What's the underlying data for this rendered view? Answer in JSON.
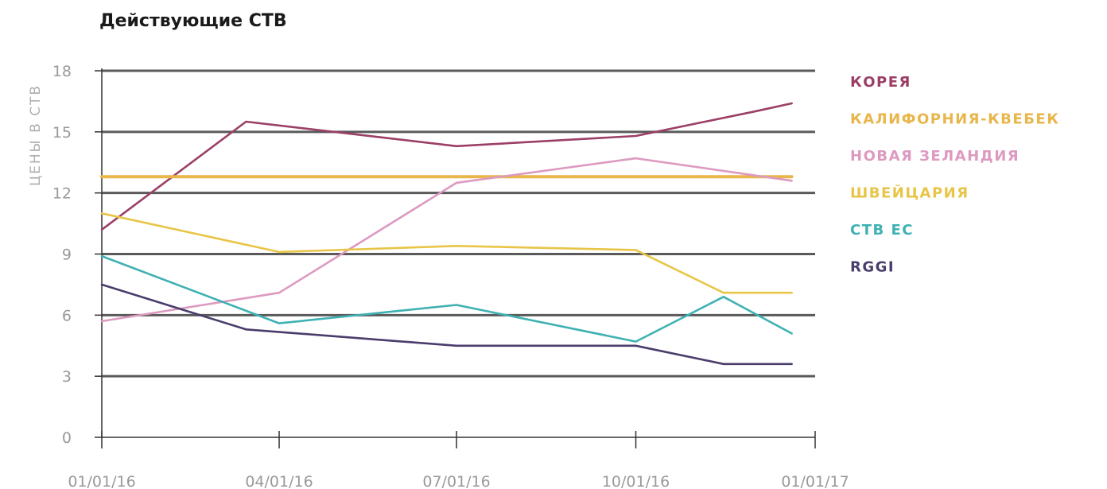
{
  "chart_data": {
    "type": "line",
    "title": "Действующие СТВ",
    "ylabel": "ЦЕНЫ В СТВ",
    "xlabel": "",
    "x_ticks": [
      "01/01/16",
      "04/01/16",
      "07/01/16",
      "10/01/16",
      "01/01/17"
    ],
    "y_ticks": [
      0,
      3,
      6,
      9,
      12,
      15,
      18
    ],
    "xlim": [
      "2016-01-01",
      "2017-01-01"
    ],
    "ylim": [
      0,
      18
    ],
    "grid": "horizontal",
    "legend_position": "right",
    "series": [
      {
        "name": "КОРЕЯ",
        "color": "#9b3f66",
        "points": [
          [
            "2016-01-01",
            10.2
          ],
          [
            "2016-03-15",
            15.5
          ],
          [
            "2016-07-01",
            14.3
          ],
          [
            "2016-10-01",
            14.8
          ],
          [
            "2016-12-01",
            16.0
          ],
          [
            "2016-12-20",
            16.4
          ]
        ]
      },
      {
        "name": "КАЛИФОРНИЯ-КВЕБЕК",
        "color": "#e8b64a",
        "points": [
          [
            "2016-01-01",
            12.8
          ],
          [
            "2016-12-20",
            12.8
          ]
        ]
      },
      {
        "name": "НОВАЯ ЗЕЛАНДИЯ",
        "color": "#dd9ac0",
        "points": [
          [
            "2016-01-01",
            5.7
          ],
          [
            "2016-04-01",
            7.1
          ],
          [
            "2016-07-01",
            12.5
          ],
          [
            "2016-10-01",
            13.7
          ],
          [
            "2016-12-20",
            12.6
          ]
        ]
      },
      {
        "name": "ШВЕЙЦАРИЯ",
        "color": "#e8c547",
        "points": [
          [
            "2016-01-01",
            11.0
          ],
          [
            "2016-04-01",
            9.1
          ],
          [
            "2016-07-01",
            9.4
          ],
          [
            "2016-10-01",
            9.2
          ],
          [
            "2016-11-15",
            7.1
          ],
          [
            "2016-12-20",
            7.1
          ]
        ]
      },
      {
        "name": "СТВ ЕС",
        "color": "#3fb1b3",
        "points": [
          [
            "2016-01-01",
            8.9
          ],
          [
            "2016-04-01",
            5.6
          ],
          [
            "2016-07-01",
            6.5
          ],
          [
            "2016-10-01",
            4.7
          ],
          [
            "2016-11-15",
            6.9
          ],
          [
            "2016-12-20",
            5.1
          ]
        ]
      },
      {
        "name": "RGGI",
        "color": "#4a3d6b",
        "points": [
          [
            "2016-01-01",
            7.5
          ],
          [
            "2016-03-15",
            5.3
          ],
          [
            "2016-07-01",
            4.5
          ],
          [
            "2016-10-01",
            4.5
          ],
          [
            "2016-11-15",
            3.6
          ],
          [
            "2016-12-20",
            3.6
          ]
        ]
      }
    ]
  }
}
